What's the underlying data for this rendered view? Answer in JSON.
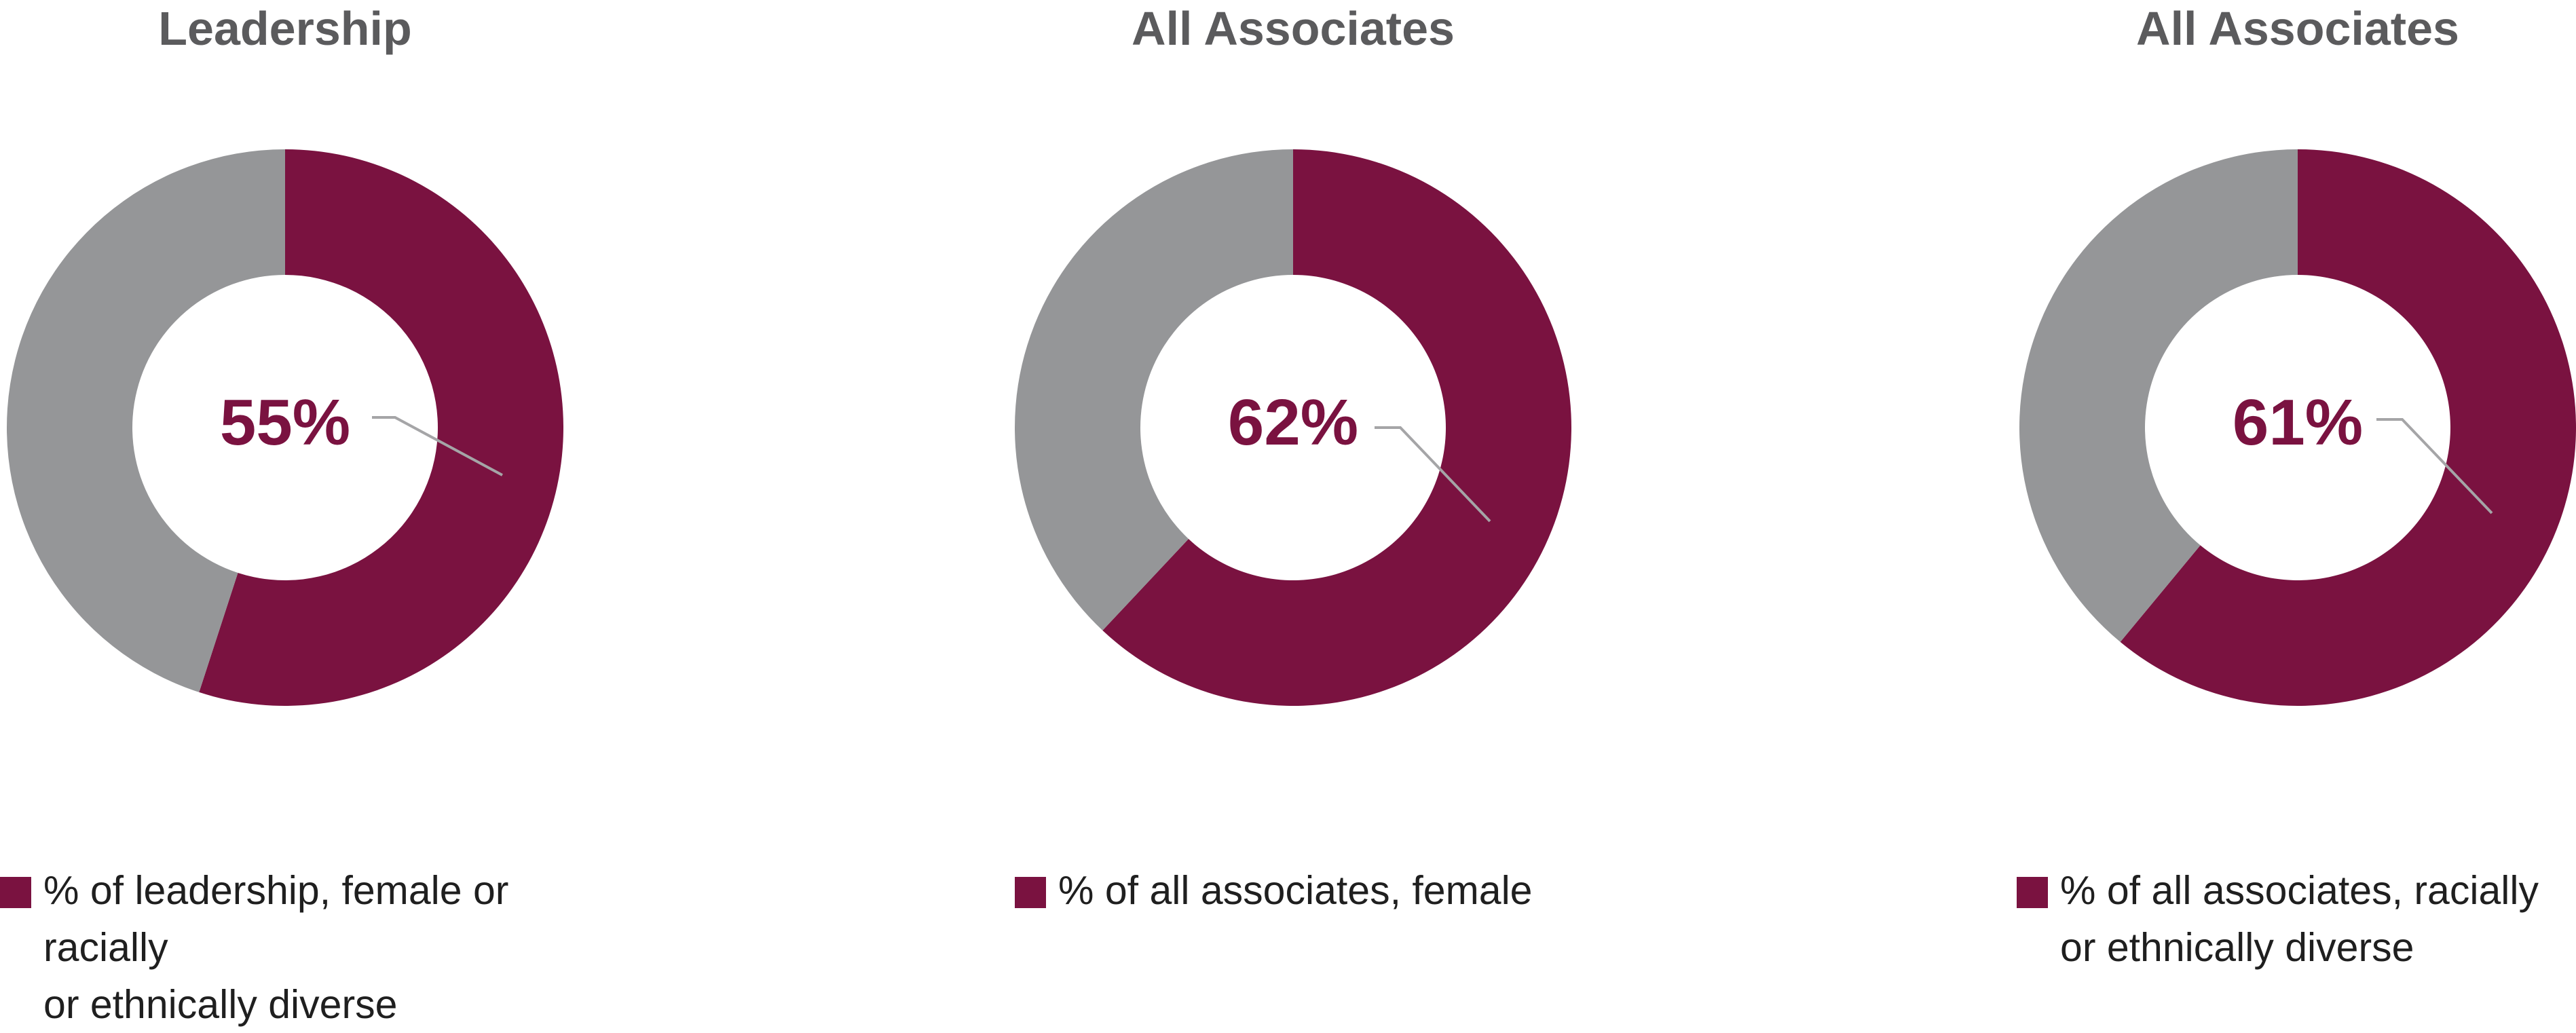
{
  "colors": {
    "accent": "#7a1240",
    "remainder": "#959698",
    "title": "#5b5b5d",
    "leader_line": "#a5a5a7"
  },
  "chart_data": [
    {
      "type": "pie",
      "title": "Leadership",
      "center_label": "55%",
      "slices": [
        {
          "label": "% of leadership, female or racially or ethnically diverse",
          "value": 55
        },
        {
          "value": 45
        }
      ],
      "legend": {
        "line1": "% of leadership, female or racially",
        "line2": "or ethnically diverse"
      }
    },
    {
      "type": "pie",
      "title": "All Associates",
      "center_label": "62%",
      "slices": [
        {
          "label": "% of all associates, female",
          "value": 62
        },
        {
          "value": 38
        }
      ],
      "legend": {
        "line1": "% of all associates, female",
        "line2": ""
      }
    },
    {
      "type": "pie",
      "title": "All Associates",
      "center_label": "61%",
      "slices": [
        {
          "label": "% of all associates, racially or ethnically diverse",
          "value": 61
        },
        {
          "value": 39
        }
      ],
      "legend": {
        "line1": "% of all associates, racially",
        "line2": "or ethnically diverse"
      }
    }
  ]
}
